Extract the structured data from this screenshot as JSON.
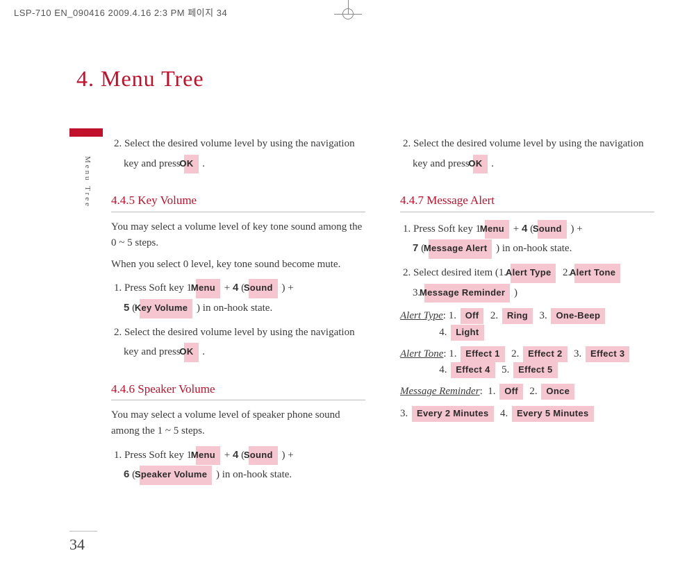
{
  "print_header": "LSP-710 EN_090416  2009.4.16 2:3 PM  페이지 34",
  "chapter_title": "4. Menu Tree",
  "side_label": "Menu Tree",
  "page_number": "34",
  "btn": {
    "ok": "OK",
    "menu": "Menu",
    "sound": "Sound",
    "key_volume": "Key Volume",
    "speaker_volume": "Speaker Volume",
    "message_alert": "Message Alert",
    "alert_type": "Alert Type",
    "alert_tone": "Alert Tone",
    "message_reminder": "Message Reminder",
    "off": "Off",
    "ring": "Ring",
    "one_beep": "One-Beep",
    "light": "Light",
    "effect1": "Effect 1",
    "effect2": "Effect 2",
    "effect3": "Effect 3",
    "effect4": "Effect 4",
    "effect5": "Effect 5",
    "once": "Once",
    "every2": "Every 2 Minutes",
    "every5": "Every 5 Minutes"
  },
  "num": {
    "four": "4",
    "five": "5",
    "six": "6",
    "seven": "7"
  },
  "sec": {
    "key_volume": {
      "title": "4.4.5 Key Volume",
      "p1": "You may select a volume level of key tone sound among the 0 ~ 5 steps.",
      "p2": "When you select 0 level, key tone sound become mute.",
      "step1_a": "1. Press Soft key 1 ",
      "step1_b": " ) in on-hook state.",
      "step2_a": "2. Select the desired volume level by using the navigation key and press ",
      "step2_b": " ."
    },
    "top_step": {
      "a": "2. Select the desired volume level by using the navigation key and press ",
      "b": " ."
    },
    "speaker_volume": {
      "title": "4.4.6 Speaker Volume",
      "p1": "You may select a volume level of speaker phone sound among the 1 ~ 5 steps.",
      "step1_a": "1. Press Soft key 1 ",
      "step1_b": " ) in on-hook state."
    },
    "msg_alert": {
      "title": "4.4.7 Message Alert",
      "step1_a": "1. Press Soft key 1 ",
      "step1_b": " ) in on-hook state.",
      "step2_a": "2. Select desired item (1. ",
      "alert_type_label": "Alert Type",
      "alert_tone_label": "Alert Tone",
      "msg_reminder_label": "Message Reminder"
    }
  }
}
